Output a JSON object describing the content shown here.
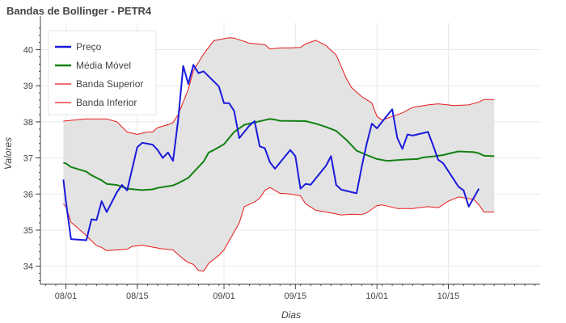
{
  "chart_data": {
    "type": "line",
    "title": "Bandas de Bollinger - PETR4",
    "xlabel": "Dias",
    "ylabel": "Valores",
    "x_ticks": [
      {
        "label": "08/01",
        "day": 0
      },
      {
        "label": "08/15",
        "day": 14
      },
      {
        "label": "09/01",
        "day": 31
      },
      {
        "label": "09/15",
        "day": 45
      },
      {
        "label": "10/01",
        "day": 61
      },
      {
        "label": "10/15",
        "day": 75
      }
    ],
    "y_ticks": [
      34,
      35,
      36,
      37,
      38,
      39,
      40
    ],
    "xlim_days": [
      -5,
      93
    ],
    "ylim": [
      33.5,
      40.75
    ],
    "grid": true,
    "legend_position": "top-left",
    "band_fill_color": "#e3e3e3",
    "series": [
      {
        "name": "Preço",
        "color": "#1a1adb",
        "width": 2,
        "points": [
          [
            -0.5,
            36.4
          ],
          [
            0,
            35.8
          ],
          [
            1,
            34.75
          ],
          [
            4,
            34.72
          ],
          [
            5,
            35.3
          ],
          [
            6,
            35.28
          ],
          [
            7,
            35.8
          ],
          [
            8,
            35.5
          ],
          [
            10,
            36.05
          ],
          [
            11,
            36.25
          ],
          [
            12,
            36.1
          ],
          [
            13,
            36.7
          ],
          [
            14,
            37.3
          ],
          [
            15,
            37.42
          ],
          [
            17,
            37.37
          ],
          [
            18,
            37.22
          ],
          [
            19,
            37
          ],
          [
            20,
            37.15
          ],
          [
            21,
            36.92
          ],
          [
            22,
            38.05
          ],
          [
            23,
            39.55
          ],
          [
            24,
            39.05
          ],
          [
            25,
            39.58
          ],
          [
            26,
            39.35
          ],
          [
            27,
            39.4
          ],
          [
            30,
            38.98
          ],
          [
            31,
            38.52
          ],
          [
            32,
            38.52
          ],
          [
            33,
            38.3
          ],
          [
            34,
            37.55
          ],
          [
            36,
            37.9
          ],
          [
            37,
            38.02
          ],
          [
            38,
            37.32
          ],
          [
            39,
            37.27
          ],
          [
            40,
            36.88
          ],
          [
            41,
            36.7
          ],
          [
            44,
            37.22
          ],
          [
            45,
            37.05
          ],
          [
            46,
            36.15
          ],
          [
            47,
            36.28
          ],
          [
            48,
            36.26
          ],
          [
            51,
            36.78
          ],
          [
            52,
            37.05
          ],
          [
            53,
            36.25
          ],
          [
            54,
            36.12
          ],
          [
            57,
            36.02
          ],
          [
            58,
            36.75
          ],
          [
            59,
            37.4
          ],
          [
            60,
            37.95
          ],
          [
            61,
            37.82
          ],
          [
            64,
            38.35
          ],
          [
            65,
            37.55
          ],
          [
            66,
            37.25
          ],
          [
            67,
            37.65
          ],
          [
            68,
            37.62
          ],
          [
            71,
            37.72
          ],
          [
            72,
            37.35
          ],
          [
            73,
            36.95
          ],
          [
            74,
            36.85
          ],
          [
            77,
            36.2
          ],
          [
            78,
            36.1
          ],
          [
            79,
            35.65
          ],
          [
            81,
            36.15
          ]
        ]
      },
      {
        "name": "Média Móvel",
        "color": "#118011",
        "width": 2,
        "points": [
          [
            -0.5,
            36.86
          ],
          [
            0,
            36.85
          ],
          [
            1,
            36.75
          ],
          [
            4,
            36.62
          ],
          [
            5,
            36.52
          ],
          [
            7,
            36.38
          ],
          [
            8,
            36.28
          ],
          [
            10,
            36.25
          ],
          [
            11,
            36.2
          ],
          [
            12,
            36.15
          ],
          [
            14,
            36.12
          ],
          [
            15,
            36.11
          ],
          [
            17,
            36.13
          ],
          [
            18,
            36.17
          ],
          [
            21,
            36.24
          ],
          [
            22,
            36.3
          ],
          [
            24,
            36.45
          ],
          [
            27,
            36.9
          ],
          [
            28,
            37.15
          ],
          [
            29,
            37.22
          ],
          [
            30,
            37.3
          ],
          [
            31,
            37.38
          ],
          [
            33,
            37.72
          ],
          [
            35,
            37.92
          ],
          [
            39,
            38.05
          ],
          [
            40,
            38.08
          ],
          [
            41,
            38.06
          ],
          [
            42,
            38.03
          ],
          [
            47,
            38.02
          ],
          [
            49,
            37.95
          ],
          [
            51,
            37.86
          ],
          [
            53,
            37.75
          ],
          [
            55,
            37.5
          ],
          [
            57,
            37.2
          ],
          [
            59,
            37.08
          ],
          [
            61,
            36.97
          ],
          [
            63,
            36.92
          ],
          [
            65,
            36.94
          ],
          [
            67,
            36.96
          ],
          [
            69,
            36.97
          ],
          [
            70,
            37.01
          ],
          [
            71,
            37.03
          ],
          [
            72,
            37.04
          ],
          [
            74,
            37.08
          ],
          [
            76,
            37.15
          ],
          [
            77,
            37.18
          ],
          [
            80,
            37.16
          ],
          [
            81,
            37.13
          ],
          [
            82,
            37.06
          ],
          [
            84,
            37.05
          ]
        ]
      },
      {
        "name": "Banda Superior",
        "color": "#e81a1a",
        "width": 1,
        "points": [
          [
            -0.5,
            38.02
          ],
          [
            0,
            38.03
          ],
          [
            4,
            38.08
          ],
          [
            8,
            38.08
          ],
          [
            10,
            38.0
          ],
          [
            12,
            37.72
          ],
          [
            14,
            37.65
          ],
          [
            16,
            37.72
          ],
          [
            17,
            37.72
          ],
          [
            18,
            37.84
          ],
          [
            20,
            37.92
          ],
          [
            21,
            37.98
          ],
          [
            22,
            38.2
          ],
          [
            24,
            38.9
          ],
          [
            25,
            39.42
          ],
          [
            27,
            39.88
          ],
          [
            29,
            40.25
          ],
          [
            32,
            40.33
          ],
          [
            33,
            40.32
          ],
          [
            36,
            40.18
          ],
          [
            39,
            40.14
          ],
          [
            40,
            40.02
          ],
          [
            42,
            40.05
          ],
          [
            44,
            40.05
          ],
          [
            46,
            40.06
          ],
          [
            47,
            40.16
          ],
          [
            49,
            40.26
          ],
          [
            51,
            40.12
          ],
          [
            53,
            39.85
          ],
          [
            55,
            39.2
          ],
          [
            56,
            38.95
          ],
          [
            58,
            38.7
          ],
          [
            60,
            38.52
          ],
          [
            61,
            38.15
          ],
          [
            62,
            38.05
          ],
          [
            65,
            38.2
          ],
          [
            66,
            38.25
          ],
          [
            68,
            38.4
          ],
          [
            71,
            38.47
          ],
          [
            73,
            38.5
          ],
          [
            75,
            38.47
          ],
          [
            76,
            38.45
          ],
          [
            79,
            38.47
          ],
          [
            81,
            38.55
          ],
          [
            82,
            38.62
          ],
          [
            84,
            38.62
          ]
        ]
      },
      {
        "name": "Banda Inferior",
        "color": "#e81a1a",
        "width": 1,
        "points": [
          [
            -0.5,
            35.72
          ],
          [
            0,
            35.65
          ],
          [
            1,
            35.22
          ],
          [
            4,
            34.85
          ],
          [
            5,
            34.7
          ],
          [
            6,
            34.57
          ],
          [
            7,
            34.52
          ],
          [
            8,
            34.43
          ],
          [
            12,
            34.47
          ],
          [
            13,
            34.55
          ],
          [
            15,
            34.58
          ],
          [
            17,
            34.53
          ],
          [
            19,
            34.48
          ],
          [
            21,
            34.45
          ],
          [
            23,
            34.2
          ],
          [
            24,
            34.1
          ],
          [
            25,
            34.05
          ],
          [
            26,
            33.88
          ],
          [
            27,
            33.86
          ],
          [
            28,
            34.08
          ],
          [
            30,
            34.3
          ],
          [
            31,
            34.45
          ],
          [
            33,
            34.95
          ],
          [
            34,
            35.2
          ],
          [
            35,
            35.65
          ],
          [
            37,
            35.78
          ],
          [
            38,
            35.88
          ],
          [
            39,
            36.1
          ],
          [
            40,
            36.18
          ],
          [
            42,
            36.02
          ],
          [
            44,
            36.0
          ],
          [
            46,
            35.95
          ],
          [
            47,
            35.73
          ],
          [
            49,
            35.55
          ],
          [
            51,
            35.5
          ],
          [
            53,
            35.45
          ],
          [
            54,
            35.42
          ],
          [
            56,
            35.44
          ],
          [
            58,
            35.43
          ],
          [
            59,
            35.48
          ],
          [
            61,
            35.68
          ],
          [
            62,
            35.7
          ],
          [
            65,
            35.6
          ],
          [
            68,
            35.6
          ],
          [
            71,
            35.65
          ],
          [
            73,
            35.62
          ],
          [
            75,
            35.8
          ],
          [
            77,
            35.92
          ],
          [
            80,
            35.85
          ],
          [
            81,
            35.7
          ],
          [
            82,
            35.5
          ],
          [
            84,
            35.5
          ]
        ]
      }
    ]
  }
}
